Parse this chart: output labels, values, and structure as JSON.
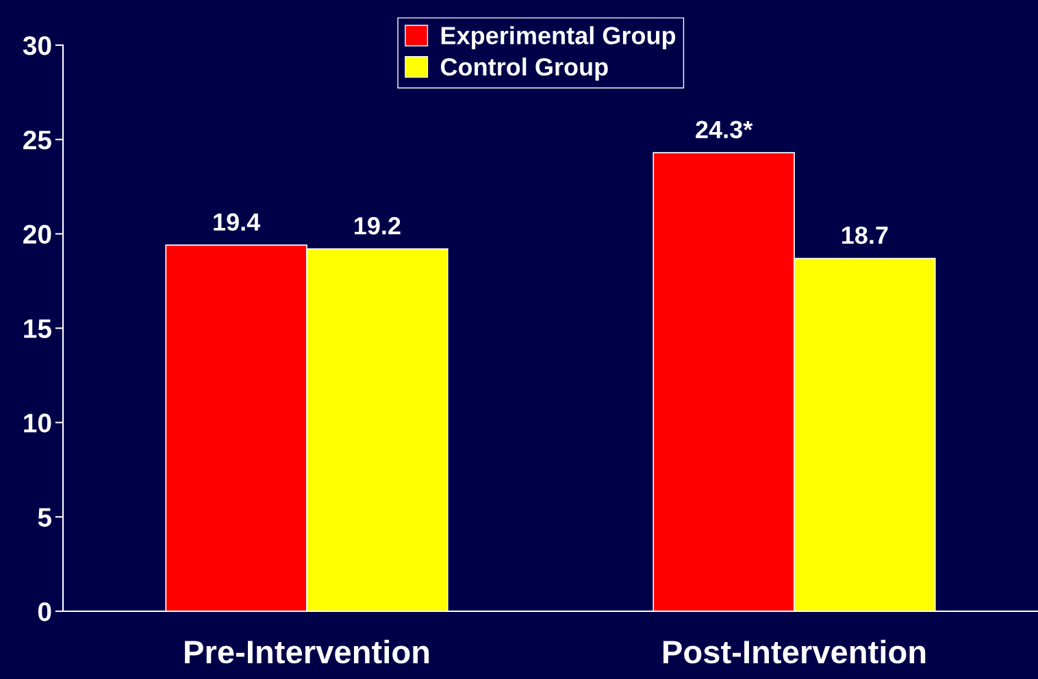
{
  "chart_data": {
    "type": "bar",
    "categories": [
      "Pre-Intervention",
      "Post-Intervention"
    ],
    "series": [
      {
        "name": "Experimental Group",
        "color": "#ff0000",
        "values": [
          19.4,
          24.3
        ],
        "value_labels": [
          "19.4",
          "24.3*"
        ]
      },
      {
        "name": "Control Group",
        "color": "#ffff00",
        "values": [
          19.2,
          18.7
        ],
        "value_labels": [
          "19.2",
          "18.7"
        ]
      }
    ],
    "ylim": [
      0,
      30
    ],
    "yticks": [
      0,
      5,
      10,
      15,
      20,
      25,
      30
    ],
    "grid": false,
    "legend": "top"
  }
}
